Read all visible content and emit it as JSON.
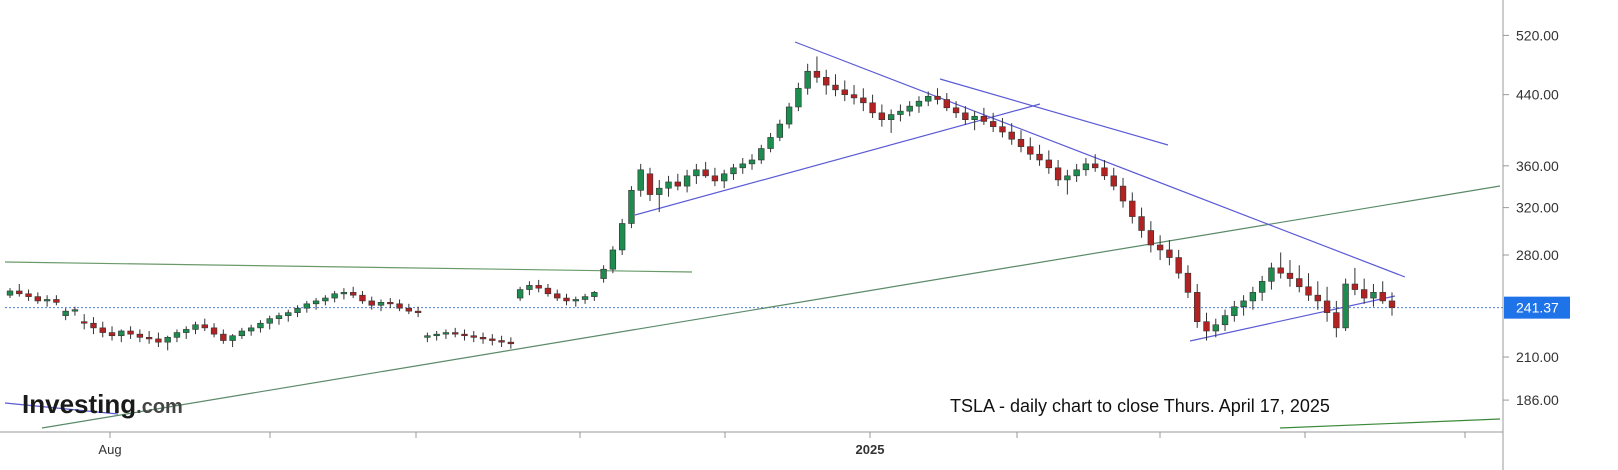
{
  "chart_data": {
    "type": "candlestick",
    "ticker": "TSLA",
    "caption": "TSLA - daily chart to close Thurs. April 17, 2025",
    "y_axis": {
      "scale": "log",
      "range": [
        170,
        540
      ],
      "tick_labels": [
        "520.00",
        "440.00",
        "360.00",
        "320.00",
        "280.00",
        "241.37",
        "210.00",
        "186.00"
      ],
      "ticks": [
        520,
        440,
        360,
        320,
        280,
        210,
        186
      ],
      "position": "right"
    },
    "x_axis": {
      "tick_labels": [
        "Aug",
        "2025"
      ],
      "bold_labels": [
        "2025"
      ]
    },
    "last_price": {
      "value": 241.37,
      "label": "241.37",
      "color": "#1e73e8"
    },
    "colors": {
      "up": "#1e8c4e",
      "down": "#b22222",
      "trendline_blue": "#5b5bd6",
      "trendline_green": "#6a9a6a",
      "price_line": "#4a7fe0",
      "grid": "#e4e4e4"
    },
    "candles": [
      [
        250,
        255,
        248,
        253
      ],
      [
        253,
        258,
        249,
        251
      ],
      [
        251,
        254,
        246,
        249
      ],
      [
        249,
        252,
        244,
        246
      ],
      [
        246,
        250,
        242,
        247
      ],
      [
        247,
        250,
        243,
        245
      ],
      [
        236,
        241,
        233,
        239
      ],
      [
        239,
        242,
        236,
        240
      ],
      [
        232,
        237,
        227,
        231
      ],
      [
        231,
        235,
        224,
        228
      ],
      [
        228,
        232,
        222,
        225
      ],
      [
        225,
        229,
        220,
        223
      ],
      [
        223,
        227,
        219,
        226
      ],
      [
        226,
        229,
        221,
        224
      ],
      [
        224,
        227,
        219,
        222
      ],
      [
        222,
        226,
        218,
        221
      ],
      [
        221,
        225,
        216,
        219
      ],
      [
        219,
        223,
        214,
        222
      ],
      [
        222,
        227,
        219,
        225
      ],
      [
        225,
        229,
        221,
        227
      ],
      [
        227,
        232,
        224,
        230
      ],
      [
        230,
        234,
        226,
        228
      ],
      [
        228,
        231,
        222,
        224
      ],
      [
        224,
        227,
        218,
        220
      ],
      [
        220,
        224,
        216,
        223
      ],
      [
        223,
        228,
        221,
        226
      ],
      [
        226,
        230,
        223,
        228
      ],
      [
        228,
        233,
        225,
        231
      ],
      [
        231,
        236,
        227,
        234
      ],
      [
        234,
        238,
        230,
        236
      ],
      [
        236,
        240,
        232,
        238
      ],
      [
        238,
        243,
        235,
        241
      ],
      [
        241,
        246,
        238,
        244
      ],
      [
        244,
        248,
        240,
        246
      ],
      [
        246,
        250,
        243,
        248
      ],
      [
        248,
        253,
        245,
        251
      ],
      [
        251,
        255,
        247,
        252
      ],
      [
        252,
        256,
        248,
        250
      ],
      [
        250,
        253,
        244,
        246
      ],
      [
        246,
        249,
        240,
        243
      ],
      [
        243,
        247,
        239,
        245
      ],
      [
        245,
        248,
        241,
        244
      ],
      [
        244,
        247,
        239,
        241
      ],
      [
        241,
        244,
        237,
        239
      ],
      [
        239,
        242,
        235,
        238
      ],
      [
        222,
        225,
        219,
        223
      ],
      [
        223,
        226,
        220,
        224
      ],
      [
        224,
        227,
        221,
        225
      ],
      [
        225,
        228,
        222,
        224
      ],
      [
        224,
        227,
        220,
        223
      ],
      [
        223,
        226,
        219,
        222
      ],
      [
        222,
        225,
        218,
        221
      ],
      [
        221,
        224,
        217,
        220
      ],
      [
        220,
        223,
        216,
        219
      ],
      [
        219,
        222,
        215,
        218
      ],
      [
        248,
        256,
        246,
        254
      ],
      [
        254,
        260,
        250,
        257
      ],
      [
        257,
        261,
        252,
        255
      ],
      [
        255,
        258,
        249,
        251
      ],
      [
        251,
        254,
        246,
        248
      ],
      [
        248,
        251,
        243,
        246
      ],
      [
        246,
        249,
        242,
        247
      ],
      [
        247,
        251,
        244,
        249
      ],
      [
        249,
        253,
        246,
        252
      ],
      [
        262,
        272,
        259,
        269
      ],
      [
        269,
        287,
        266,
        284
      ],
      [
        284,
        310,
        280,
        306
      ],
      [
        306,
        340,
        302,
        336
      ],
      [
        336,
        362,
        330,
        356
      ],
      [
        352,
        358,
        326,
        332
      ],
      [
        332,
        346,
        316,
        338
      ],
      [
        338,
        350,
        330,
        344
      ],
      [
        344,
        352,
        336,
        340
      ],
      [
        340,
        356,
        334,
        350
      ],
      [
        350,
        362,
        342,
        356
      ],
      [
        356,
        364,
        348,
        350
      ],
      [
        350,
        358,
        340,
        345
      ],
      [
        345,
        356,
        338,
        352
      ],
      [
        352,
        362,
        346,
        358
      ],
      [
        358,
        368,
        352,
        362
      ],
      [
        362,
        372,
        356,
        366
      ],
      [
        366,
        382,
        362,
        378
      ],
      [
        378,
        395,
        374,
        390
      ],
      [
        390,
        410,
        386,
        405
      ],
      [
        405,
        430,
        400,
        425
      ],
      [
        425,
        455,
        420,
        448
      ],
      [
        448,
        480,
        440,
        470
      ],
      [
        470,
        490,
        455,
        462
      ],
      [
        462,
        472,
        440,
        452
      ],
      [
        452,
        466,
        438,
        446
      ],
      [
        446,
        458,
        432,
        440
      ],
      [
        440,
        452,
        428,
        436
      ],
      [
        436,
        448,
        420,
        430
      ],
      [
        430,
        440,
        412,
        418
      ],
      [
        418,
        428,
        402,
        410
      ],
      [
        410,
        422,
        395,
        416
      ],
      [
        416,
        428,
        408,
        420
      ],
      [
        420,
        432,
        414,
        426
      ],
      [
        426,
        438,
        418,
        432
      ],
      [
        432,
        444,
        426,
        438
      ],
      [
        438,
        448,
        428,
        434
      ],
      [
        434,
        442,
        420,
        424
      ],
      [
        424,
        432,
        412,
        418
      ],
      [
        418,
        426,
        404,
        410
      ],
      [
        410,
        420,
        398,
        414
      ],
      [
        414,
        424,
        404,
        408
      ],
      [
        408,
        418,
        396,
        402
      ],
      [
        402,
        412,
        390,
        396
      ],
      [
        396,
        406,
        382,
        388
      ],
      [
        388,
        398,
        374,
        380
      ],
      [
        380,
        390,
        366,
        372
      ],
      [
        372,
        382,
        360,
        366
      ],
      [
        366,
        376,
        352,
        358
      ],
      [
        358,
        366,
        340,
        346
      ],
      [
        346,
        356,
        332,
        350
      ],
      [
        350,
        362,
        344,
        356
      ],
      [
        356,
        368,
        350,
        362
      ],
      [
        362,
        372,
        354,
        358
      ],
      [
        358,
        366,
        346,
        350
      ],
      [
        350,
        358,
        336,
        340
      ],
      [
        340,
        348,
        320,
        326
      ],
      [
        326,
        334,
        306,
        312
      ],
      [
        312,
        320,
        294,
        300
      ],
      [
        300,
        308,
        282,
        288
      ],
      [
        288,
        296,
        276,
        284
      ],
      [
        284,
        292,
        272,
        278
      ],
      [
        278,
        284,
        262,
        266
      ],
      [
        266,
        272,
        248,
        252
      ],
      [
        252,
        258,
        228,
        232
      ],
      [
        232,
        238,
        220,
        226
      ],
      [
        226,
        234,
        222,
        230
      ],
      [
        230,
        240,
        226,
        236
      ],
      [
        236,
        246,
        232,
        242
      ],
      [
        242,
        250,
        236,
        246
      ],
      [
        246,
        256,
        240,
        252
      ],
      [
        252,
        264,
        246,
        260
      ],
      [
        260,
        274,
        254,
        270
      ],
      [
        270,
        282,
        262,
        266
      ],
      [
        266,
        276,
        256,
        262
      ],
      [
        262,
        272,
        252,
        256
      ],
      [
        256,
        266,
        246,
        250
      ],
      [
        250,
        260,
        240,
        246
      ],
      [
        246,
        256,
        232,
        238
      ],
      [
        238,
        246,
        222,
        228
      ],
      [
        228,
        262,
        226,
        258
      ],
      [
        258,
        270,
        250,
        254
      ],
      [
        254,
        262,
        244,
        248
      ],
      [
        248,
        258,
        242,
        252
      ],
      [
        252,
        260,
        244,
        246
      ],
      [
        246,
        252,
        236,
        241.37
      ]
    ]
  }
}
